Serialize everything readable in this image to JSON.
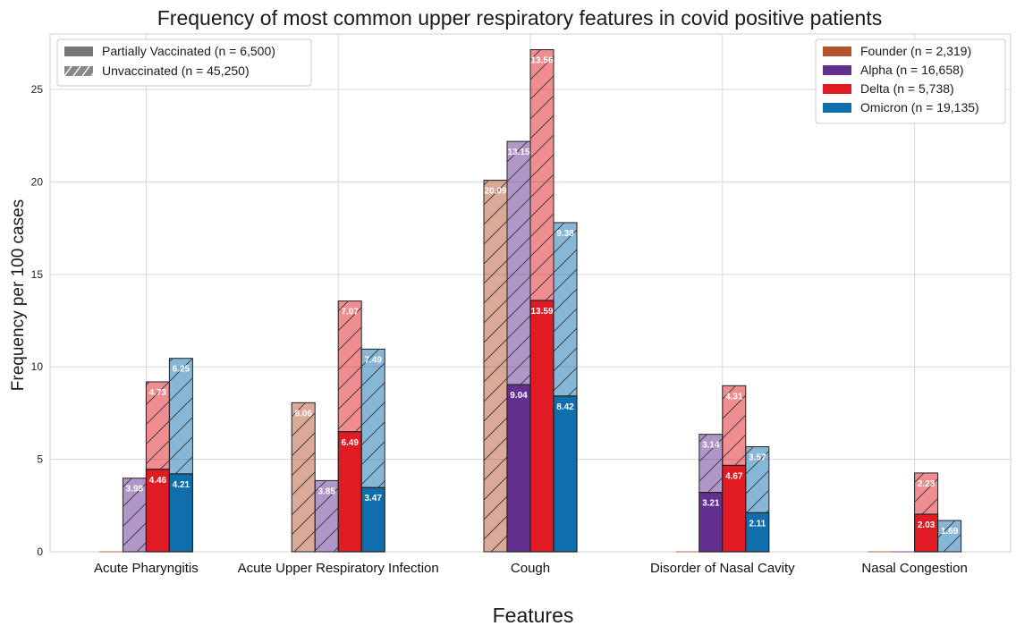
{
  "chart_data": {
    "type": "bar",
    "title": "Frequency of most common upper respiratory features in covid positive patients",
    "xlabel": "Features",
    "ylabel": "Frequency per 100 cases",
    "ylim": [
      0,
      28
    ],
    "yticks": [
      0,
      5,
      10,
      15,
      20,
      25
    ],
    "grid": true,
    "categories": [
      "Acute Pharyngitis",
      "Acute Upper Respiratory Infection",
      "Cough",
      "Disorder of Nasal Cavity",
      "Nasal Congestion"
    ],
    "stack_legend": {
      "placement": "top-left",
      "entries": [
        {
          "label": "Partially Vaccinated (n = 6,500)",
          "style": "solid"
        },
        {
          "label": "Unvaccinated (n = 45,250)",
          "style": "hatched"
        }
      ]
    },
    "series_legend_placement": "top-right",
    "series": [
      {
        "name": "Founder (n = 2,319)",
        "color": "#b5532f",
        "partially_vaccinated": [
          0,
          0,
          0,
          0,
          0
        ],
        "unvaccinated": [
          0,
          8.06,
          20.09,
          0,
          0
        ],
        "pv_labels": [
          "",
          "",
          "",
          "",
          ""
        ],
        "uv_labels": [
          "",
          "8.06",
          "20.09",
          "",
          ""
        ]
      },
      {
        "name": "Alpha (n = 16,658)",
        "color": "#63308f",
        "partially_vaccinated": [
          0,
          0,
          9.04,
          3.21,
          0
        ],
        "unvaccinated": [
          3.98,
          3.85,
          13.15,
          3.14,
          0
        ],
        "pv_labels": [
          "",
          "",
          "9.04",
          "3.21",
          ""
        ],
        "uv_labels": [
          "3.98",
          "3.85",
          "13.15",
          "3.14",
          ""
        ]
      },
      {
        "name": "Delta (n = 5,738)",
        "color": "#e01b24",
        "partially_vaccinated": [
          4.46,
          6.49,
          13.59,
          4.67,
          2.03
        ],
        "unvaccinated": [
          4.73,
          7.07,
          13.56,
          4.31,
          2.23
        ],
        "pv_labels": [
          "4.46",
          "6.49",
          "13.59",
          "4.67",
          "2.03"
        ],
        "uv_labels": [
          "4.73",
          "7.07",
          "13.56",
          "4.31",
          "2.23"
        ]
      },
      {
        "name": "Omicron (n = 19,135)",
        "color": "#0f6fad",
        "partially_vaccinated": [
          4.21,
          3.47,
          8.42,
          2.11,
          0
        ],
        "unvaccinated": [
          6.25,
          7.49,
          9.38,
          3.57,
          1.69
        ],
        "pv_labels": [
          "4.21",
          "3.47",
          "8.42",
          "2.11",
          ""
        ],
        "uv_labels": [
          "6.25",
          "7.49",
          "9.38",
          "3.57",
          "1.69"
        ]
      }
    ]
  }
}
